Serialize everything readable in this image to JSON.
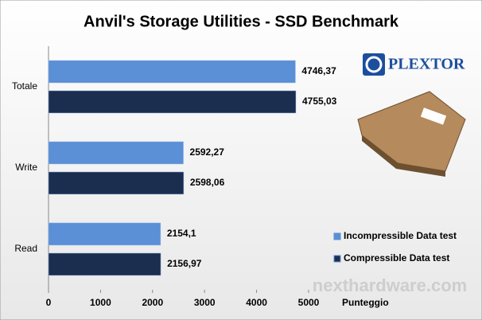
{
  "chart_data": {
    "type": "barh",
    "title": "Anvil's Storage Utilities - SSD Benchmark",
    "xlabel": "Punteggio",
    "categories": [
      "Totale",
      "Write",
      "Read"
    ],
    "series": [
      {
        "name": "Incompressible Data test",
        "color": "#5b8fd6",
        "values": [
          4746.37,
          2592.27,
          2154.1
        ],
        "value_labels": [
          "4746,37",
          "2592,27",
          "2154,1"
        ]
      },
      {
        "name": "Compressible Data test",
        "color": "#1c2e4f",
        "values": [
          4755.03,
          2598.06,
          2156.97
        ],
        "value_labels": [
          "4755,03",
          "2598,06",
          "2156,97"
        ]
      }
    ],
    "xlim": [
      0,
      5000
    ],
    "xticks": [
      0,
      1000,
      2000,
      3000,
      4000,
      5000
    ],
    "grid": false,
    "logo": "PLEXTOR",
    "watermark": "nexthardware.com"
  }
}
